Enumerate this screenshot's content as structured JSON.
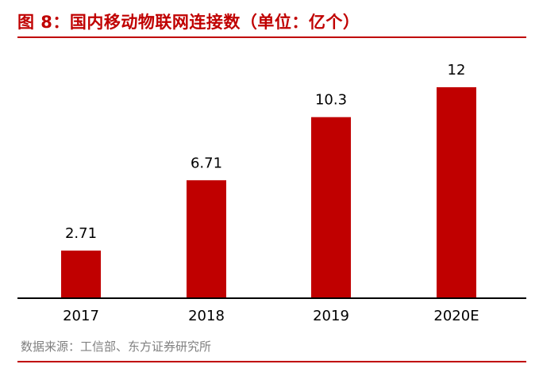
{
  "header": {
    "title": "图 8：国内移动物联网连接数（单位：亿个）"
  },
  "footer": {
    "source": "数据来源：工信部、东方证券研究所"
  },
  "colors": {
    "accent": "#c00000",
    "bar": "#c00000",
    "axis": "#000000",
    "source_text": "#808080"
  },
  "chart_data": {
    "type": "bar",
    "title": "",
    "xlabel": "",
    "ylabel": "",
    "categories": [
      "2017",
      "2018",
      "2019",
      "2020E"
    ],
    "values": [
      2.71,
      6.71,
      10.3,
      12
    ],
    "data_labels": [
      "2.71",
      "6.71",
      "10.3",
      "12"
    ],
    "ylim": [
      0,
      12
    ],
    "grid": false,
    "legend": "none"
  }
}
